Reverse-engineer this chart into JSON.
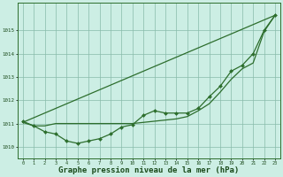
{
  "background_color": "#cceee4",
  "plot_bg_color": "#cceee4",
  "grid_color": "#88bbaa",
  "line_color": "#2d6e2d",
  "marker_color": "#2d6e2d",
  "xlabel": "Graphe pression niveau de la mer (hPa)",
  "xlabel_fontsize": 6.5,
  "ylim": [
    1009.5,
    1016.2
  ],
  "xlim": [
    -0.5,
    23.5
  ],
  "yticks": [
    1010,
    1011,
    1012,
    1013,
    1014,
    1015
  ],
  "xticks": [
    0,
    1,
    2,
    3,
    4,
    5,
    6,
    7,
    8,
    9,
    10,
    11,
    12,
    13,
    14,
    15,
    16,
    17,
    18,
    19,
    20,
    21,
    22,
    23
  ],
  "series1": [
    1011.1,
    1010.9,
    1010.65,
    1010.55,
    1010.25,
    1010.15,
    1010.25,
    1010.35,
    1010.55,
    1010.85,
    1010.95,
    1011.35,
    1011.55,
    1011.45,
    1011.45,
    1011.45,
    1011.65,
    1012.15,
    1012.6,
    1013.25,
    1013.5,
    1014.0,
    1015.0,
    1015.65
  ],
  "series2_straight": [
    [
      0,
      1011.05
    ],
    [
      23,
      1015.65
    ]
  ],
  "series3": [
    1011.05,
    1010.9,
    1010.9,
    1011.0,
    1011.0,
    1011.0,
    1011.0,
    1011.0,
    1011.0,
    1011.0,
    1011.0,
    1011.05,
    1011.1,
    1011.15,
    1011.2,
    1011.3,
    1011.55,
    1011.85,
    1012.35,
    1012.9,
    1013.35,
    1013.6,
    1014.95,
    1015.65
  ]
}
